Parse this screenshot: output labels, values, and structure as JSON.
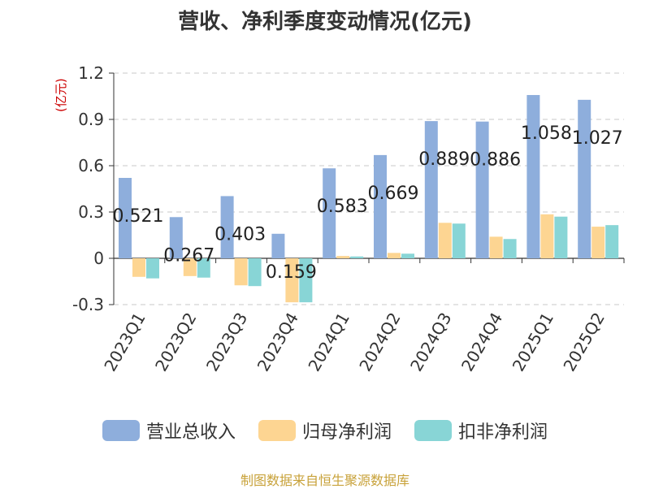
{
  "chart_data": {
    "type": "bar",
    "title": "营收、净利季度变动情况(亿元)",
    "ylabel": "(亿元)",
    "ylim": [
      -0.3,
      1.2
    ],
    "yticks": [
      "-0.3",
      "0",
      "0.3",
      "0.6",
      "0.9",
      "1.2"
    ],
    "categories": [
      "2023Q1",
      "2023Q2",
      "2023Q3",
      "2023Q4",
      "2024Q1",
      "2024Q2",
      "2024Q3",
      "2024Q4",
      "2025Q1",
      "2025Q2"
    ],
    "series": [
      {
        "name": "营业总收入",
        "color": "#8eaedc",
        "values": [
          0.521,
          0.267,
          0.403,
          0.159,
          0.583,
          0.669,
          0.889,
          0.886,
          1.058,
          1.027
        ],
        "labels": [
          "0.521",
          "0.267",
          "0.403",
          "0.159",
          "0.583",
          "0.669",
          "0.889",
          "0.886",
          "1.058",
          "1.027"
        ]
      },
      {
        "name": "归母净利润",
        "color": "#fdd592",
        "values": [
          -0.12,
          -0.115,
          -0.175,
          -0.285,
          0.015,
          0.035,
          0.23,
          0.14,
          0.285,
          0.205
        ]
      },
      {
        "name": "扣非净利润",
        "color": "#88d5d6",
        "values": [
          -0.13,
          -0.125,
          -0.18,
          -0.285,
          0.012,
          0.03,
          0.225,
          0.125,
          0.27,
          0.215
        ]
      }
    ],
    "grid": true,
    "legend_position": "bottom"
  },
  "source": "制图数据来自恒生聚源数据库"
}
